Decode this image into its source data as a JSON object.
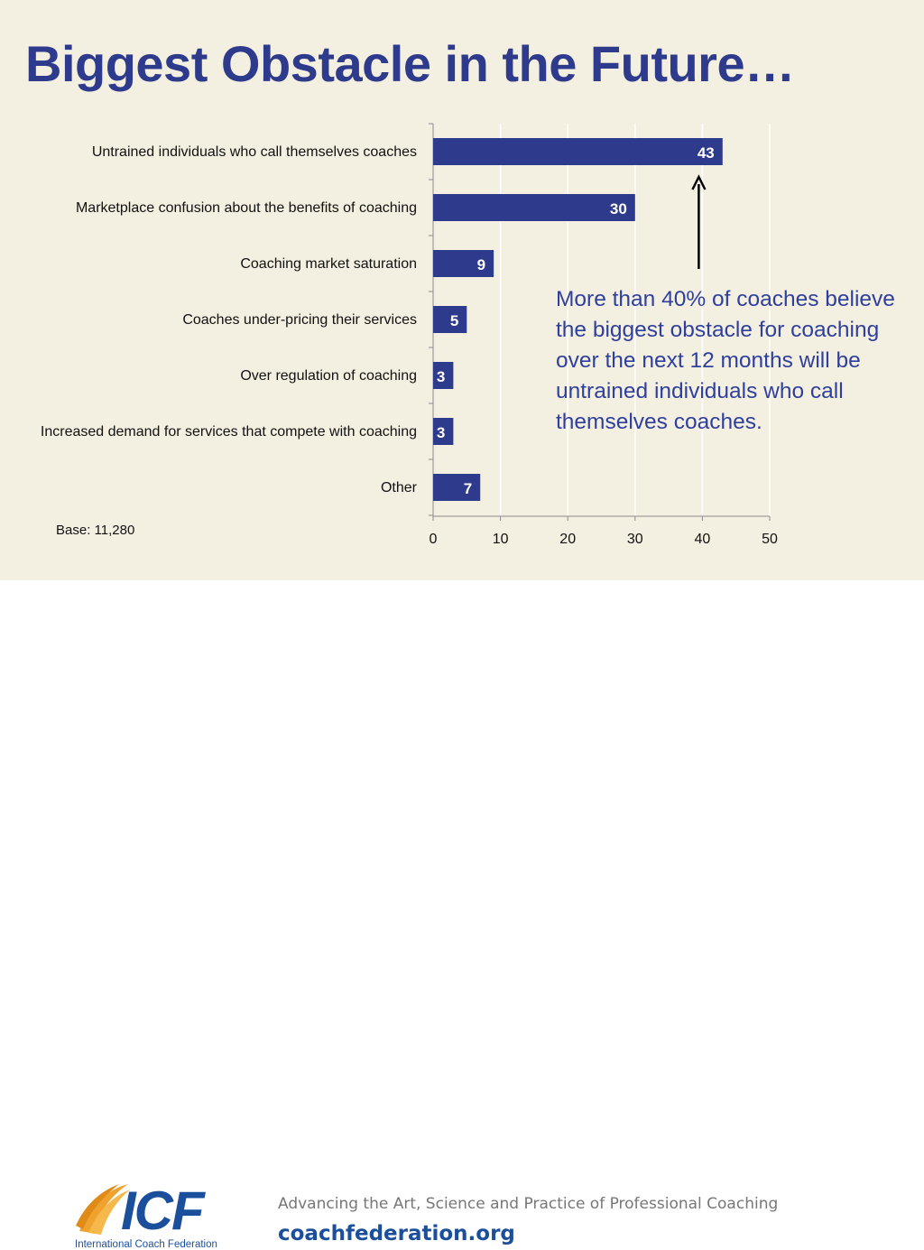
{
  "slide": {
    "title": "Biggest Obstacle in the Future…",
    "callout": "More than 40% of coaches believe the biggest obstacle for coaching over the next 12 months will be untrained individuals who call themselves coaches.",
    "base_note": "Base: 11,280"
  },
  "chart_data": {
    "type": "bar",
    "orientation": "horizontal",
    "categories": [
      "Untrained individuals who call themselves coaches",
      "Marketplace confusion about the benefits of coaching",
      "Coaching market saturation",
      "Coaches under-pricing their services",
      "Over regulation of coaching",
      "Increased demand for services that compete with coaching",
      "Other"
    ],
    "values": [
      43,
      30,
      9,
      5,
      3,
      3,
      7
    ],
    "xlim": [
      0,
      50
    ],
    "xticks": [
      0,
      10,
      20,
      30,
      40,
      50
    ],
    "grid": true,
    "bar_color": "#2e3a8c",
    "title": "",
    "xlabel": "",
    "ylabel": ""
  },
  "footer": {
    "logo_text": "ICF",
    "logo_subtitle": "International Coach Federation",
    "tagline": "Advancing the Art, Science and Practice of Professional Coaching",
    "website": "coachfederation.org"
  },
  "colors": {
    "brand_blue": "#2e3a8c",
    "callout_blue": "#2f3f9c",
    "background": "#f4f0e1",
    "logo_orange": "#f0a22e"
  }
}
